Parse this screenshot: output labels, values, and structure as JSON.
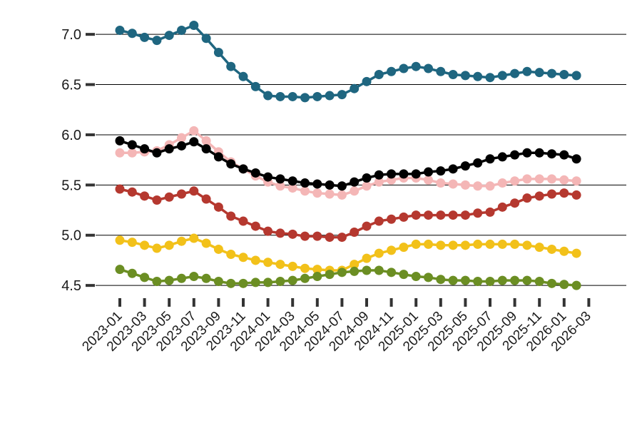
{
  "chart_data": {
    "type": "line",
    "title": "",
    "xlabel": "",
    "ylabel": "",
    "ylim": [
      4.43,
      7.2
    ],
    "yticks": [
      "7.0",
      "6.5",
      "6.0",
      "5.5",
      "5.0",
      "4.5"
    ],
    "ytick_values": [
      7.0,
      6.5,
      6.0,
      5.5,
      5.0,
      4.5
    ],
    "grid": "horizontal",
    "legend": "none",
    "x_tick_labels": [
      "2023-01",
      "2023-03",
      "2023-05",
      "2023-07",
      "2023-09",
      "2023-11",
      "2024-01",
      "2024-03",
      "2024-05",
      "2024-07",
      "2024-09",
      "2024-11",
      "2025-01",
      "2025-03",
      "2025-05",
      "2025-07",
      "2025-09",
      "2025-11",
      "2026-01",
      "2026-03"
    ],
    "x": [
      "2023-01",
      "2023-02",
      "2023-03",
      "2023-04",
      "2023-05",
      "2023-06",
      "2023-07",
      "2023-08",
      "2023-09",
      "2023-10",
      "2023-11",
      "2023-12",
      "2024-01",
      "2024-02",
      "2024-03",
      "2024-04",
      "2024-05",
      "2024-06",
      "2024-07",
      "2024-08",
      "2024-09",
      "2024-10",
      "2024-11",
      "2024-12",
      "2025-01",
      "2025-02",
      "2025-03",
      "2025-04",
      "2025-05",
      "2025-06",
      "2025-07",
      "2025-08",
      "2025-09",
      "2025-10",
      "2025-11",
      "2025-12",
      "2026-01",
      "2026-02"
    ],
    "series": [
      {
        "color": "#1f6680",
        "values": [
          7.04,
          7.01,
          6.97,
          6.94,
          6.99,
          7.04,
          7.09,
          6.96,
          6.82,
          6.68,
          6.58,
          6.48,
          6.39,
          6.38,
          6.38,
          6.37,
          6.38,
          6.39,
          6.4,
          6.46,
          6.53,
          6.6,
          6.63,
          6.66,
          6.68,
          6.66,
          6.63,
          6.6,
          6.59,
          6.58,
          6.57,
          6.59,
          6.61,
          6.63,
          6.62,
          6.61,
          6.6,
          6.59
        ]
      },
      {
        "color": "#f4b6b6",
        "values": [
          5.82,
          5.82,
          5.83,
          5.84,
          5.9,
          5.97,
          6.04,
          5.94,
          5.83,
          5.73,
          5.66,
          5.59,
          5.53,
          5.49,
          5.47,
          5.44,
          5.42,
          5.41,
          5.4,
          5.44,
          5.49,
          5.53,
          5.55,
          5.57,
          5.57,
          5.55,
          5.52,
          5.51,
          5.5,
          5.49,
          5.49,
          5.52,
          5.54,
          5.56,
          5.56,
          5.56,
          5.55,
          5.54
        ]
      },
      {
        "color": "#000000",
        "values": [
          5.94,
          5.9,
          5.86,
          5.82,
          5.86,
          5.89,
          5.93,
          5.86,
          5.78,
          5.71,
          5.66,
          5.62,
          5.58,
          5.56,
          5.54,
          5.52,
          5.51,
          5.5,
          5.49,
          5.53,
          5.57,
          5.6,
          5.61,
          5.61,
          5.61,
          5.63,
          5.64,
          5.66,
          5.69,
          5.72,
          5.76,
          5.78,
          5.8,
          5.82,
          5.82,
          5.81,
          5.8,
          5.76
        ]
      },
      {
        "color": "#b5382f",
        "values": [
          5.46,
          5.43,
          5.39,
          5.35,
          5.38,
          5.41,
          5.44,
          5.36,
          5.28,
          5.19,
          5.14,
          5.09,
          5.04,
          5.02,
          5.01,
          4.99,
          4.99,
          4.98,
          4.98,
          5.03,
          5.09,
          5.14,
          5.16,
          5.18,
          5.2,
          5.2,
          5.2,
          5.2,
          5.2,
          5.22,
          5.23,
          5.28,
          5.32,
          5.37,
          5.39,
          5.41,
          5.42,
          5.4
        ]
      },
      {
        "color": "#f2c11a",
        "values": [
          4.95,
          4.93,
          4.9,
          4.87,
          4.9,
          4.94,
          4.97,
          4.92,
          4.86,
          4.81,
          4.78,
          4.75,
          4.73,
          4.71,
          4.69,
          4.67,
          4.66,
          4.65,
          4.65,
          4.71,
          4.77,
          4.82,
          4.85,
          4.88,
          4.91,
          4.91,
          4.9,
          4.9,
          4.9,
          4.91,
          4.91,
          4.91,
          4.91,
          4.9,
          4.88,
          4.86,
          4.84,
          4.82
        ]
      },
      {
        "color": "#6b8e23",
        "values": [
          4.66,
          4.62,
          4.58,
          4.54,
          4.55,
          4.57,
          4.59,
          4.57,
          4.54,
          4.52,
          4.52,
          4.53,
          4.53,
          4.54,
          4.55,
          4.57,
          4.59,
          4.61,
          4.63,
          4.64,
          4.65,
          4.65,
          4.63,
          4.61,
          4.59,
          4.58,
          4.56,
          4.55,
          4.55,
          4.54,
          4.54,
          4.55,
          4.55,
          4.55,
          4.54,
          4.52,
          4.51,
          4.5
        ]
      }
    ]
  }
}
